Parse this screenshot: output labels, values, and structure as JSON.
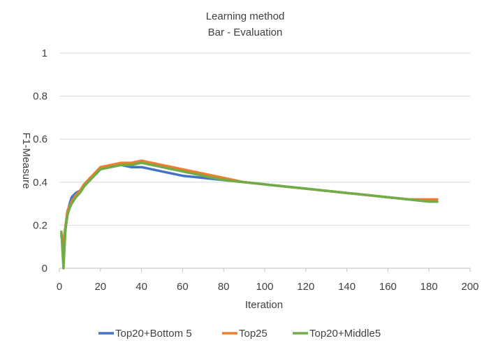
{
  "chart_data": {
    "type": "line",
    "title": "Learning method",
    "subtitle": "Bar - Evaluation",
    "xlabel": "Iteration",
    "ylabel": "F1-Measure",
    "xlim": [
      0,
      200
    ],
    "ylim": [
      0,
      1
    ],
    "xticks": [
      "0",
      "20",
      "40",
      "60",
      "80",
      "100",
      "120",
      "140",
      "160",
      "180",
      "200"
    ],
    "yticks": [
      "0",
      "0.2",
      "0.4",
      "0.6",
      "0.8",
      "1"
    ],
    "grid": "horizontal",
    "legend_position": "bottom",
    "series": [
      {
        "name": "Top20+Bottom 5",
        "color": "#4472c4",
        "x": [
          1,
          2,
          3,
          4,
          5,
          6,
          8,
          10,
          12,
          15,
          18,
          20,
          25,
          30,
          35,
          40,
          45,
          50,
          55,
          60,
          70,
          80,
          90,
          100,
          110,
          120,
          130,
          140,
          150,
          160,
          170,
          180,
          184
        ],
        "values": [
          0.15,
          0.1,
          0.18,
          0.26,
          0.3,
          0.33,
          0.35,
          0.36,
          0.38,
          0.42,
          0.44,
          0.46,
          0.47,
          0.48,
          0.47,
          0.47,
          0.46,
          0.45,
          0.44,
          0.43,
          0.42,
          0.41,
          0.4,
          0.39,
          0.38,
          0.37,
          0.36,
          0.35,
          0.34,
          0.33,
          0.32,
          0.31,
          0.31
        ]
      },
      {
        "name": "Top25",
        "color": "#ed7d31",
        "x": [
          1,
          2,
          3,
          4,
          5,
          6,
          8,
          10,
          12,
          15,
          18,
          20,
          25,
          30,
          35,
          40,
          45,
          50,
          55,
          60,
          70,
          80,
          90,
          100,
          110,
          120,
          130,
          140,
          150,
          160,
          170,
          180,
          184
        ],
        "values": [
          0.16,
          0.12,
          0.2,
          0.27,
          0.29,
          0.31,
          0.34,
          0.36,
          0.39,
          0.42,
          0.45,
          0.47,
          0.48,
          0.49,
          0.49,
          0.5,
          0.49,
          0.48,
          0.47,
          0.46,
          0.44,
          0.42,
          0.4,
          0.39,
          0.38,
          0.37,
          0.36,
          0.35,
          0.34,
          0.33,
          0.32,
          0.32,
          0.32
        ]
      },
      {
        "name": "Top20+Middle5",
        "color": "#70ad47",
        "x": [
          1,
          2,
          3,
          4,
          5,
          6,
          8,
          10,
          12,
          15,
          18,
          20,
          25,
          30,
          35,
          40,
          45,
          50,
          55,
          60,
          70,
          80,
          90,
          100,
          110,
          120,
          130,
          140,
          150,
          160,
          170,
          180,
          184
        ],
        "values": [
          0.17,
          0.0,
          0.19,
          0.25,
          0.28,
          0.3,
          0.33,
          0.35,
          0.38,
          0.41,
          0.44,
          0.46,
          0.47,
          0.48,
          0.48,
          0.49,
          0.48,
          0.47,
          0.46,
          0.45,
          0.43,
          0.41,
          0.4,
          0.39,
          0.38,
          0.37,
          0.36,
          0.35,
          0.34,
          0.33,
          0.32,
          0.31,
          0.31
        ]
      }
    ]
  }
}
